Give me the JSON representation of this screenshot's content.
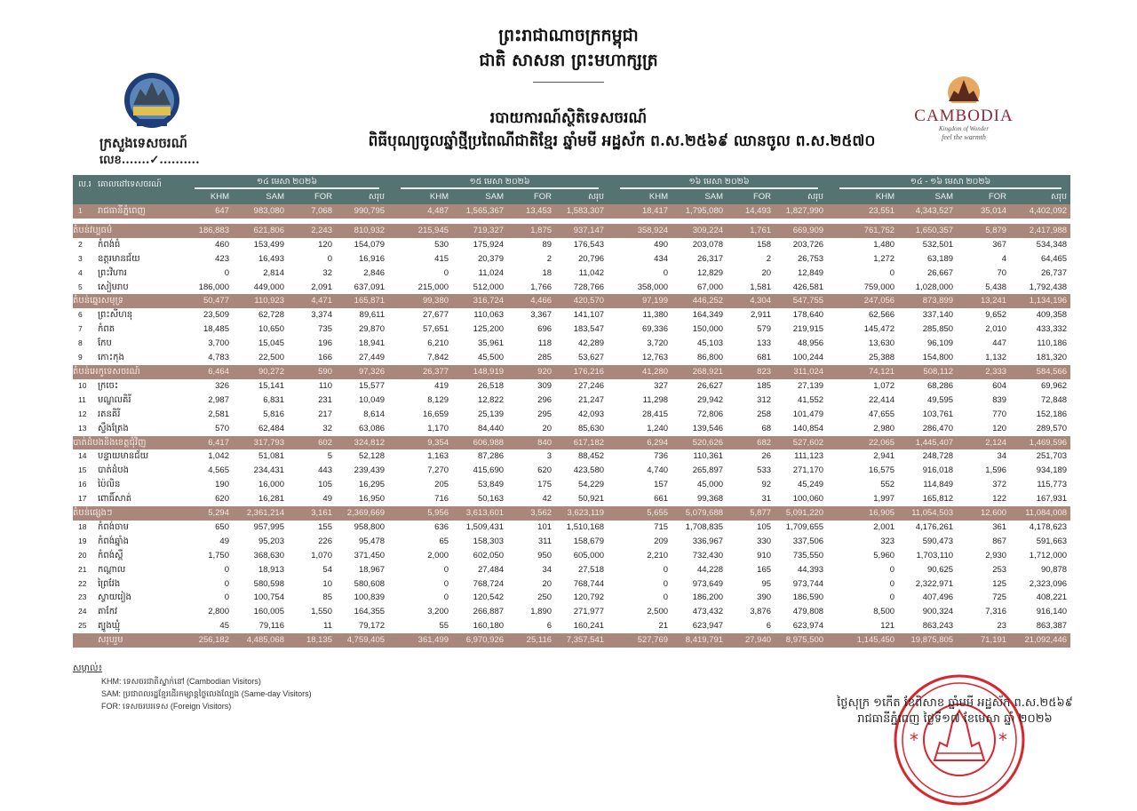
{
  "header": {
    "kingdom": "ព្រះរាជាណាចក្រកម្ពុជា",
    "motto": "ជាតិ សាសនា ព្រះមហាក្សត្រ",
    "report_title": "របាយការណ៍ស្ថិតិទេសចរណ៍",
    "report_subtitle": "ពិធីបុណ្យចូលឆ្នាំថ្មីប្រពៃណីជាតិខ្មែរ ឆ្នាំមមី អដ្ឋស័ក ព.ស.២៥៦៩ ឈានចូល ព.ស.២៥៧០",
    "ministry": "ក្រសួងទេសចរណ៍",
    "ref_no": "លេខ.......✓..........",
    "ministry_logo": "ministry-of-tourism-seal",
    "brand_logo": {
      "text": "CAMBODIA",
      "tagline1": "Kingdom of Wonder",
      "tagline2": "feel the warmth"
    }
  },
  "colors": {
    "header_bg": "#557371",
    "region_bg": "#a9877a",
    "stamp": "#d8262e"
  },
  "table": {
    "col_no": "ល.រ",
    "col_destination": "គោលដៅទេសចរណ៍",
    "groups": [
      "១៤ មេសា ២០២៦",
      "១៥ មេសា ២០២៦",
      "១៦ មេសា ២០២៦",
      "១៤ - ១៦ មេសា ២០២៦"
    ],
    "subcols": [
      "KHM",
      "SAM",
      "FOR",
      "សរុប"
    ],
    "rows": [
      {
        "type": "capital",
        "no": "1",
        "name": "រាជធានីភ្នំពេញ",
        "values": [
          "647",
          "983,080",
          "7,068",
          "990,795",
          "4,487",
          "1,565,367",
          "13,453",
          "1,583,307",
          "18,417",
          "1,795,080",
          "14,493",
          "1,827,990",
          "23,551",
          "4,343,527",
          "35,014",
          "4,402,092"
        ]
      },
      {
        "type": "gap"
      },
      {
        "type": "region",
        "no": "",
        "name": "តំបន់វប្បធម៌",
        "values": [
          "186,883",
          "621,806",
          "2,243",
          "810,932",
          "215,945",
          "719,327",
          "1,875",
          "937,147",
          "358,924",
          "309,224",
          "1,761",
          "669,909",
          "761,752",
          "1,650,357",
          "5,879",
          "2,417,988"
        ]
      },
      {
        "type": "province",
        "no": "2",
        "name": "កំពង់ធំ",
        "values": [
          "460",
          "153,499",
          "120",
          "154,079",
          "530",
          "175,924",
          "89",
          "176,543",
          "490",
          "203,078",
          "158",
          "203,726",
          "1,480",
          "532,501",
          "367",
          "534,348"
        ]
      },
      {
        "type": "province",
        "no": "3",
        "name": "ឧត្តរមានជ័យ",
        "values": [
          "423",
          "16,493",
          "0",
          "16,916",
          "415",
          "20,379",
          "2",
          "20,796",
          "434",
          "26,317",
          "2",
          "26,753",
          "1,272",
          "63,189",
          "4",
          "64,465"
        ]
      },
      {
        "type": "province",
        "no": "4",
        "name": "ព្រះវិហារ",
        "values": [
          "0",
          "2,814",
          "32",
          "2,846",
          "0",
          "11,024",
          "18",
          "11,042",
          "0",
          "12,829",
          "20",
          "12,849",
          "0",
          "26,667",
          "70",
          "26,737"
        ]
      },
      {
        "type": "province",
        "no": "5",
        "name": "សៀមរាប",
        "values": [
          "186,000",
          "449,000",
          "2,091",
          "637,091",
          "215,000",
          "512,000",
          "1,766",
          "728,766",
          "358,000",
          "67,000",
          "1,581",
          "426,581",
          "759,000",
          "1,028,000",
          "5,438",
          "1,792,438"
        ]
      },
      {
        "type": "region",
        "no": "",
        "name": "តំបន់ឆ្នេរសមុទ្រ",
        "values": [
          "50,477",
          "110,923",
          "4,471",
          "165,871",
          "99,380",
          "316,724",
          "4,466",
          "420,570",
          "97,199",
          "446,252",
          "4,304",
          "547,755",
          "247,056",
          "873,899",
          "13,241",
          "1,134,196"
        ]
      },
      {
        "type": "province",
        "no": "6",
        "name": "ព្រះសីហនុ",
        "values": [
          "23,509",
          "62,728",
          "3,374",
          "89,611",
          "27,677",
          "110,063",
          "3,367",
          "141,107",
          "11,380",
          "164,349",
          "2,911",
          "178,640",
          "62,566",
          "337,140",
          "9,652",
          "409,358"
        ]
      },
      {
        "type": "province",
        "no": "7",
        "name": "កំពត",
        "values": [
          "18,485",
          "10,650",
          "735",
          "29,870",
          "57,651",
          "125,200",
          "696",
          "183,547",
          "69,336",
          "150,000",
          "579",
          "219,915",
          "145,472",
          "285,850",
          "2,010",
          "433,332"
        ]
      },
      {
        "type": "province",
        "no": "8",
        "name": "កែប",
        "values": [
          "3,700",
          "15,045",
          "196",
          "18,941",
          "6,210",
          "35,961",
          "118",
          "42,289",
          "3,720",
          "45,103",
          "133",
          "48,956",
          "13,630",
          "96,109",
          "447",
          "110,186"
        ]
      },
      {
        "type": "province",
        "no": "9",
        "name": "កោះកុង",
        "values": [
          "4,783",
          "22,500",
          "166",
          "27,449",
          "7,842",
          "45,500",
          "285",
          "53,627",
          "12,763",
          "86,800",
          "681",
          "100,244",
          "25,388",
          "154,800",
          "1,132",
          "181,320"
        ]
      },
      {
        "type": "region",
        "no": "",
        "name": "តំបន់អេកូទេសចរណ៍",
        "values": [
          "6,464",
          "90,272",
          "590",
          "97,326",
          "26,377",
          "148,919",
          "920",
          "176,216",
          "41,280",
          "268,921",
          "823",
          "311,024",
          "74,121",
          "508,112",
          "2,333",
          "584,566"
        ]
      },
      {
        "type": "province",
        "no": "10",
        "name": "ក្រចេះ",
        "values": [
          "326",
          "15,141",
          "110",
          "15,577",
          "419",
          "26,518",
          "309",
          "27,246",
          "327",
          "26,627",
          "185",
          "27,139",
          "1,072",
          "68,286",
          "604",
          "69,962"
        ]
      },
      {
        "type": "province",
        "no": "11",
        "name": "មណ្ឌលគិរី",
        "values": [
          "2,987",
          "6,831",
          "231",
          "10,049",
          "8,129",
          "12,822",
          "296",
          "21,247",
          "11,298",
          "29,942",
          "312",
          "41,552",
          "22,414",
          "49,595",
          "839",
          "72,848"
        ]
      },
      {
        "type": "province",
        "no": "12",
        "name": "រតនគិរី",
        "values": [
          "2,581",
          "5,816",
          "217",
          "8,614",
          "16,659",
          "25,139",
          "295",
          "42,093",
          "28,415",
          "72,806",
          "258",
          "101,479",
          "47,655",
          "103,761",
          "770",
          "152,186"
        ]
      },
      {
        "type": "province",
        "no": "13",
        "name": "ស្ទឹងត្រែង",
        "values": [
          "570",
          "62,484",
          "32",
          "63,086",
          "1,170",
          "84,440",
          "20",
          "85,630",
          "1,240",
          "139,546",
          "68",
          "140,854",
          "2,980",
          "286,470",
          "120",
          "289,570"
        ]
      },
      {
        "type": "region",
        "no": "",
        "name": "បាត់ដំបងនិងខេត្តជុំវិញ",
        "values": [
          "6,417",
          "317,793",
          "602",
          "324,812",
          "9,354",
          "606,988",
          "840",
          "617,182",
          "6,294",
          "520,626",
          "682",
          "527,602",
          "22,065",
          "1,445,407",
          "2,124",
          "1,469,596"
        ]
      },
      {
        "type": "province",
        "no": "14",
        "name": "បន្ទាយមានជ័យ",
        "values": [
          "1,042",
          "51,081",
          "5",
          "52,128",
          "1,163",
          "87,286",
          "3",
          "88,452",
          "736",
          "110,361",
          "26",
          "111,123",
          "2,941",
          "248,728",
          "34",
          "251,703"
        ]
      },
      {
        "type": "province",
        "no": "15",
        "name": "បាត់ដំបង",
        "values": [
          "4,565",
          "234,431",
          "443",
          "239,439",
          "7,270",
          "415,690",
          "620",
          "423,580",
          "4,740",
          "265,897",
          "533",
          "271,170",
          "16,575",
          "916,018",
          "1,596",
          "934,189"
        ]
      },
      {
        "type": "province",
        "no": "16",
        "name": "ប៉ៃលិន",
        "values": [
          "190",
          "16,000",
          "105",
          "16,295",
          "205",
          "53,849",
          "175",
          "54,229",
          "157",
          "45,000",
          "92",
          "45,249",
          "552",
          "114,849",
          "372",
          "115,773"
        ]
      },
      {
        "type": "province",
        "no": "17",
        "name": "ពោធិ៍សាត់",
        "values": [
          "620",
          "16,281",
          "49",
          "16,950",
          "716",
          "50,163",
          "42",
          "50,921",
          "661",
          "99,368",
          "31",
          "100,060",
          "1,997",
          "165,812",
          "122",
          "167,931"
        ]
      },
      {
        "type": "region",
        "no": "",
        "name": "តំបន់ផ្សេងៗ",
        "values": [
          "5,294",
          "2,361,214",
          "3,161",
          "2,369,669",
          "5,956",
          "3,613,601",
          "3,562",
          "3,623,119",
          "5,655",
          "5,079,688",
          "5,877",
          "5,091,220",
          "16,905",
          "11,054,503",
          "12,600",
          "11,084,008"
        ]
      },
      {
        "type": "province",
        "no": "18",
        "name": "កំពង់ចាម",
        "values": [
          "650",
          "957,995",
          "155",
          "958,800",
          "636",
          "1,509,431",
          "101",
          "1,510,168",
          "715",
          "1,708,835",
          "105",
          "1,709,655",
          "2,001",
          "4,176,261",
          "361",
          "4,178,623"
        ]
      },
      {
        "type": "province",
        "no": "19",
        "name": "កំពង់ឆ្នាំង",
        "values": [
          "49",
          "95,203",
          "226",
          "95,478",
          "65",
          "158,303",
          "311",
          "158,679",
          "209",
          "336,967",
          "330",
          "337,506",
          "323",
          "590,473",
          "867",
          "591,663"
        ]
      },
      {
        "type": "province",
        "no": "20",
        "name": "កំពង់ស្ពឺ",
        "values": [
          "1,750",
          "368,630",
          "1,070",
          "371,450",
          "2,000",
          "602,050",
          "950",
          "605,000",
          "2,210",
          "732,430",
          "910",
          "735,550",
          "5,960",
          "1,703,110",
          "2,930",
          "1,712,000"
        ]
      },
      {
        "type": "province",
        "no": "21",
        "name": "កណ្ដាល",
        "values": [
          "0",
          "18,913",
          "54",
          "18,967",
          "0",
          "27,484",
          "34",
          "27,518",
          "0",
          "44,228",
          "165",
          "44,393",
          "0",
          "90,625",
          "253",
          "90,878"
        ]
      },
      {
        "type": "province",
        "no": "22",
        "name": "ព្រៃវែង",
        "values": [
          "0",
          "580,598",
          "10",
          "580,608",
          "0",
          "768,724",
          "20",
          "768,744",
          "0",
          "973,649",
          "95",
          "973,744",
          "0",
          "2,322,971",
          "125",
          "2,323,096"
        ]
      },
      {
        "type": "province",
        "no": "23",
        "name": "ស្វាយរៀង",
        "values": [
          "0",
          "100,754",
          "85",
          "100,839",
          "0",
          "120,542",
          "250",
          "120,792",
          "0",
          "186,200",
          "390",
          "186,590",
          "0",
          "407,496",
          "725",
          "408,221"
        ]
      },
      {
        "type": "province",
        "no": "24",
        "name": "តាកែវ",
        "values": [
          "2,800",
          "160,005",
          "1,550",
          "164,355",
          "3,200",
          "266,887",
          "1,890",
          "271,977",
          "2,500",
          "473,432",
          "3,876",
          "479,808",
          "8,500",
          "900,324",
          "7,316",
          "916,140"
        ]
      },
      {
        "type": "province",
        "no": "25",
        "name": "ត្បូងឃ្មុំ",
        "values": [
          "45",
          "79,116",
          "11",
          "79,172",
          "55",
          "160,180",
          "6",
          "160,241",
          "21",
          "623,947",
          "6",
          "623,974",
          "121",
          "863,243",
          "23",
          "863,387"
        ]
      },
      {
        "type": "total",
        "no": "",
        "name": "សរុបរួម",
        "values": [
          "256,182",
          "4,485,068",
          "18,135",
          "4,759,405",
          "361,499",
          "6,970,926",
          "25,116",
          "7,357,541",
          "527,769",
          "8,419,791",
          "27,940",
          "8,975,500",
          "1,145,450",
          "19,875,805",
          "71,191",
          "21,092,446"
        ]
      }
    ]
  },
  "notes": {
    "heading": "សម្គាល់៖",
    "khm": "KHM: ទេសចរជាតិស្នាក់នៅ (Cambodian Visitors)",
    "sam": "SAM: ប្រជាពលរដ្ឋខ្មែរដើរកម្សាន្តថ្ងៃលេងល្បែង (Same-day Visitors)",
    "for": "FOR: ទេសចរបរទេស (Foreign Visitors)"
  },
  "footer": {
    "lunar_date": "ថ្ងៃសុក្រ ១កើត ខែពិសាខ ឆ្នាំមមី អដ្ឋស័ក ព.ស.២៥៦៩",
    "place_date": "រាជធានីភ្នំពេញ ថ្ងៃទី១៧ ខែមេសា ឆ្នាំ ២០២៦",
    "stamp": "ក្រសួងទេសចរណ៍ ព្រះរាជាណាចក្រកម្ពុជា"
  }
}
